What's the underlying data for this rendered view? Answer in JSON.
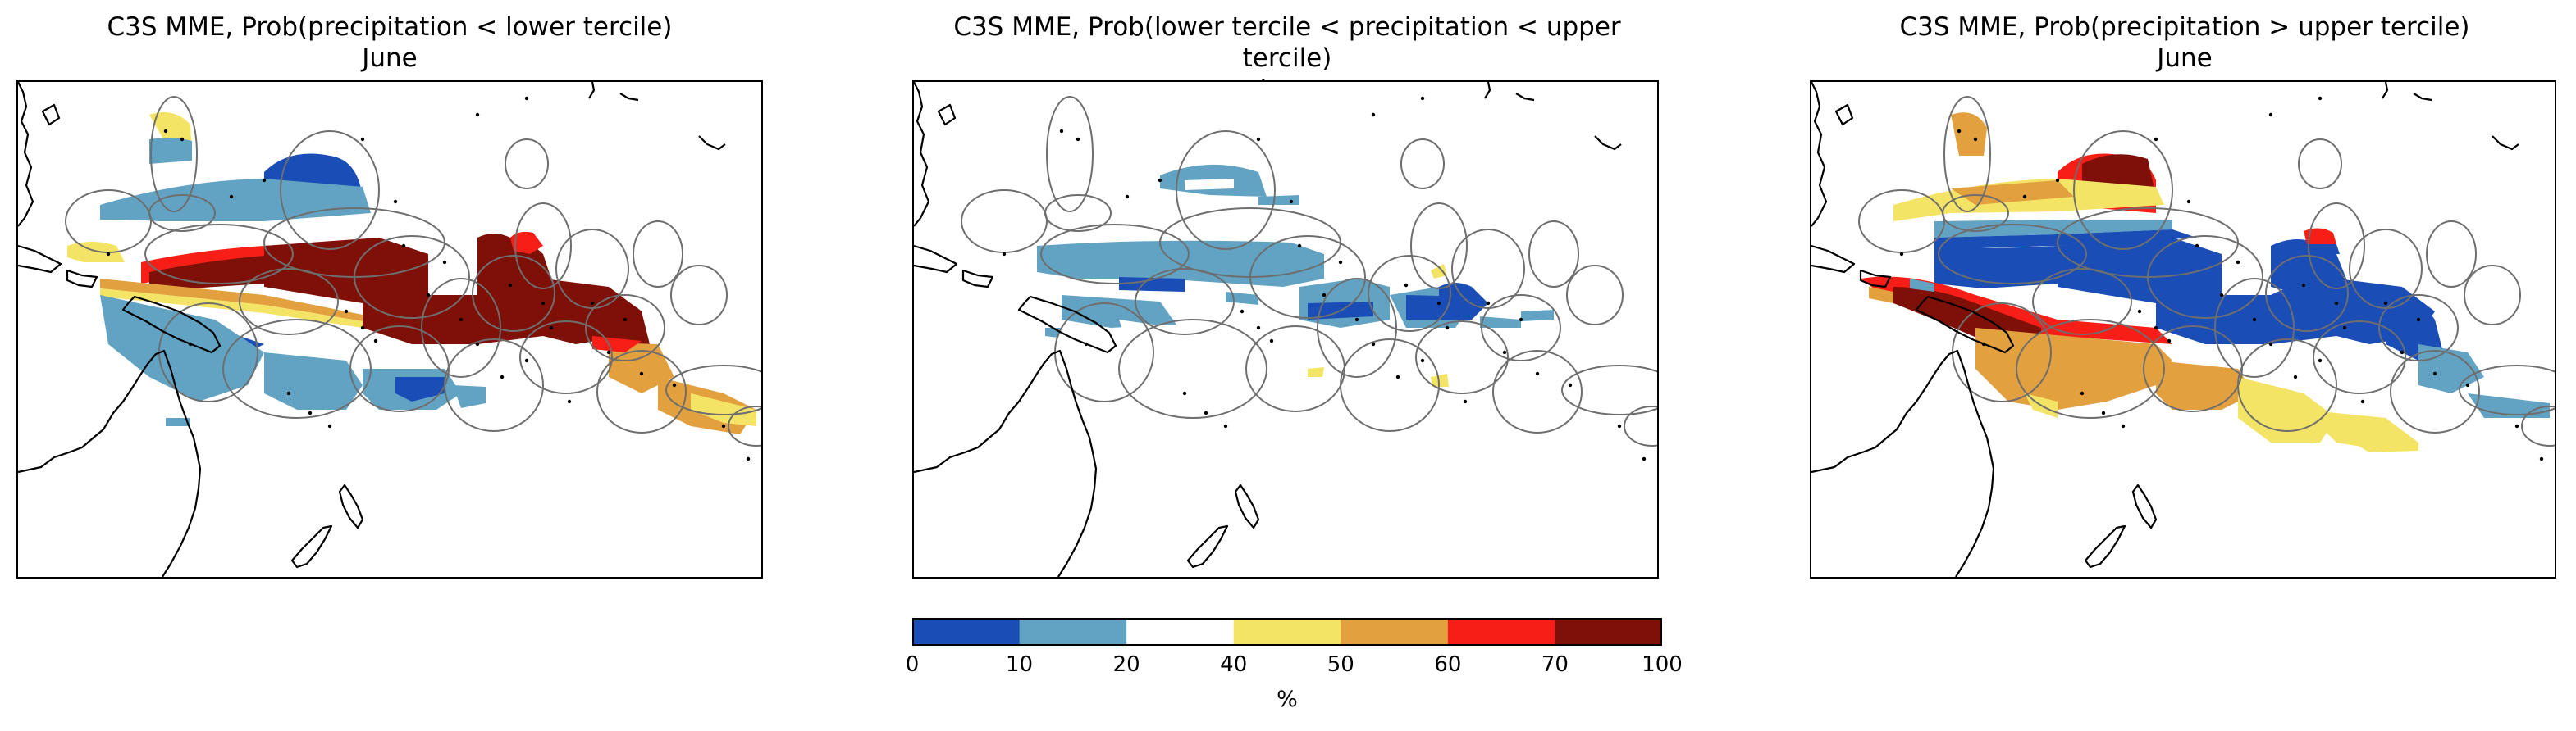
{
  "panels": [
    {
      "title_line1": "C3S MME, Prob(precipitation < lower tercile)",
      "title_line2": "June",
      "category": "below"
    },
    {
      "title_line1": "C3S MME, Prob(lower tercile < precipitation < upper tercile)",
      "title_line2": "June",
      "category": "normal"
    },
    {
      "title_line1": "C3S MME, Prob(precipitation > upper tercile)",
      "title_line2": "June",
      "category": "above"
    }
  ],
  "colorbar": {
    "bounds": [
      0,
      10,
      20,
      40,
      50,
      60,
      70,
      100
    ],
    "tick_labels": [
      "0",
      "10",
      "20",
      "40",
      "50",
      "60",
      "70",
      "100"
    ],
    "colors": [
      "#1a4db5",
      "#62a3c3",
      "#ffffff",
      "#f4e466",
      "#e3a03e",
      "#f61e16",
      "#7f1008"
    ],
    "label": "%"
  },
  "colors": {
    "land_outline": "#000000",
    "eez_outline": "#6e6e6e",
    "frame": "#000000"
  }
}
